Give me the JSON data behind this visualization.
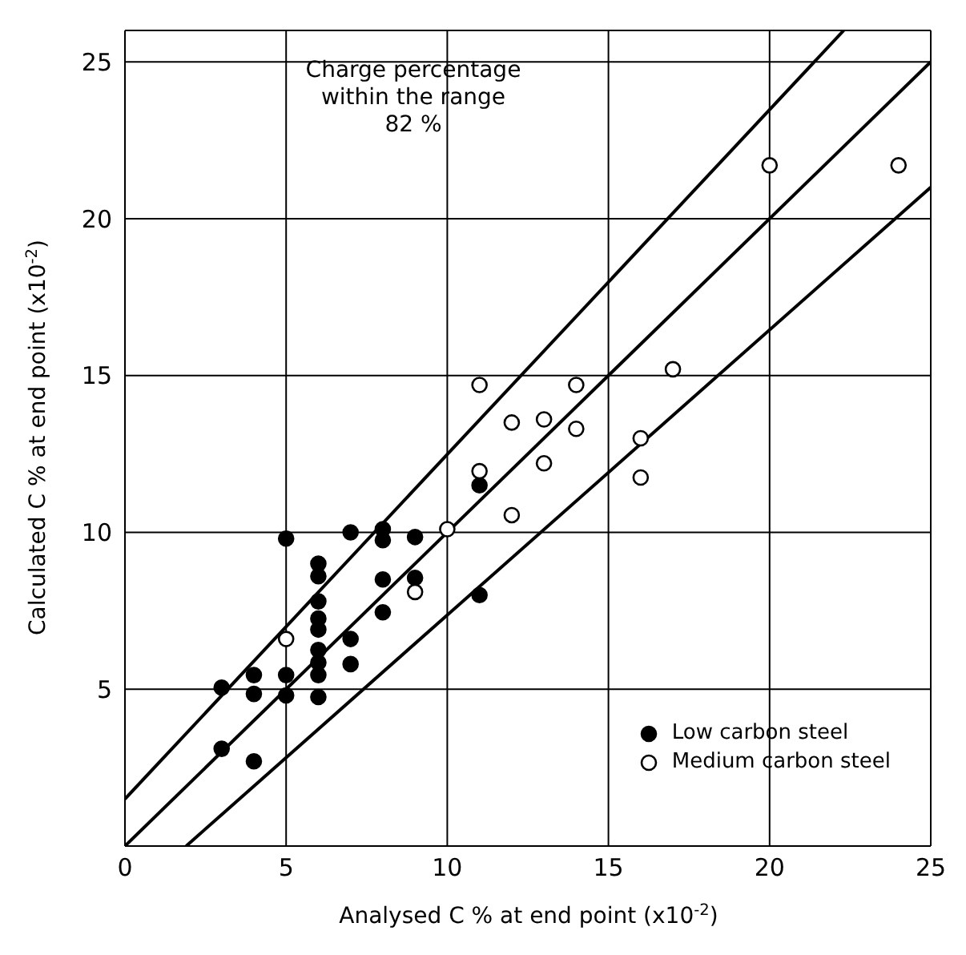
{
  "chart_data": {
    "type": "scatter",
    "xlabel": "Analysed C % at end point (x10$^{-2}$)",
    "ylabel": "Calculated C % at end point (x10$^{-2}$)",
    "annotations": [
      "Charge percentage\nwithin the range\n82 %"
    ],
    "xlim": [
      0,
      25
    ],
    "ylim": [
      0,
      26
    ],
    "xticks": [
      0,
      5,
      10,
      15,
      20,
      25
    ],
    "yticks": [
      5,
      10,
      15,
      20,
      25
    ],
    "grid": true,
    "legend": "bottom right",
    "marker": "circle",
    "series": [
      {
        "name": "Low carbon steel",
        "color": "#000000",
        "x": [
          5,
          7,
          8,
          8,
          9,
          6,
          6,
          8,
          9,
          6,
          8,
          6,
          6,
          7,
          7,
          6,
          6,
          6,
          4,
          5,
          3,
          4,
          5,
          6,
          3,
          4,
          11,
          11
        ],
        "values": [
          9.8,
          10.0,
          10.1,
          9.75,
          9.85,
          9.0,
          8.6,
          8.5,
          8.55,
          7.8,
          7.45,
          7.25,
          6.9,
          6.6,
          5.8,
          6.25,
          5.85,
          5.45,
          5.45,
          5.45,
          5.05,
          4.85,
          4.8,
          4.75,
          3.1,
          2.7,
          8.0,
          11.5
        ]
      },
      {
        "name": "Medium carbon steel",
        "color": "#000000",
        "x": [
          5,
          9,
          10,
          12,
          11,
          14,
          17,
          12,
          13,
          14,
          11,
          13,
          16,
          16,
          20,
          24
        ],
        "values": [
          6.6,
          8.1,
          10.1,
          10.55,
          14.7,
          14.7,
          15.2,
          13.5,
          13.6,
          13.3,
          11.95,
          12.2,
          13.0,
          11.75,
          21.7,
          21.7
        ]
      },
      {
        "type": "line",
        "color": "#000000",
        "marker": "none",
        "x": [
          0,
          22.3
        ],
        "values": [
          1.5,
          26
        ]
      },
      {
        "type": "line",
        "color": "#000000",
        "marker": "none",
        "x": [
          0,
          25
        ],
        "values": [
          0,
          25
        ]
      },
      {
        "type": "line",
        "color": "#000000",
        "marker": "none",
        "x": [
          1.9,
          25
        ],
        "values": [
          0,
          21
        ]
      }
    ]
  }
}
